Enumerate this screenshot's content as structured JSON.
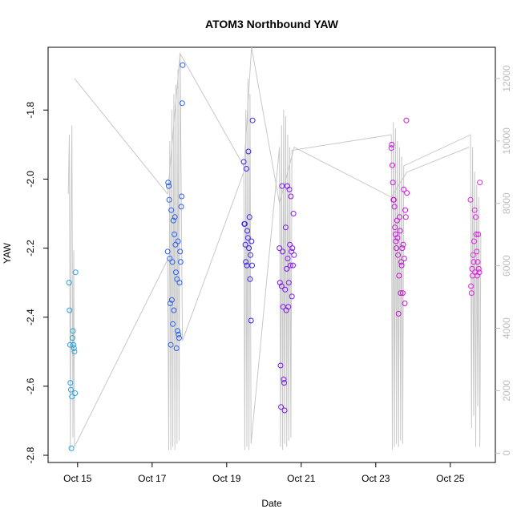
{
  "chart_data": {
    "type": "scatter",
    "title": "ATOM3 Northbound YAW",
    "xlabel": "Date",
    "ylabel": "YAW",
    "xlim": [
      "2014-10-14T05:00",
      "2014-10-26T05:00"
    ],
    "ylim": [
      -2.8,
      -1.66
    ],
    "y2lim": [
      -300,
      13000
    ],
    "x_ticks": [
      "Oct 15",
      "Oct 17",
      "Oct 19",
      "Oct 21",
      "Oct 23",
      "Oct 25"
    ],
    "x_tick_dates": [
      "2014-10-15",
      "2014-10-17",
      "2014-10-19",
      "2014-10-21",
      "2014-10-23",
      "2014-10-25"
    ],
    "y_ticks": [
      -2.8,
      -2.6,
      -2.4,
      -2.2,
      -2.0,
      -1.8
    ],
    "y_tick_labels": [
      "-2.8",
      "-2.6",
      "-2.4",
      "-2.2",
      "-2.0",
      "-1.8"
    ],
    "y2_ticks": [
      0,
      2000,
      4000,
      6000,
      8000,
      10000,
      12000
    ],
    "y2_tick_labels": [
      "0",
      "2000",
      "4000",
      "6000",
      "8000",
      "10000",
      "12000"
    ],
    "colors": {
      "series": [
        "#29a3e0",
        "#2a5ff0",
        "#3d22f0",
        "#7a18f0",
        "#c815d9",
        "#e024e0"
      ],
      "secondary_line": "#c8c8c8",
      "axis": "#000000",
      "right_axis": "#bdbdbd"
    },
    "grid": false,
    "series": [
      {
        "color": "#29a3e0",
        "points": [
          [
            "2014-10-14T18:30",
            -2.3
          ],
          [
            "2014-10-14T18:50",
            -2.38
          ],
          [
            "2014-10-14T19:10",
            -2.48
          ],
          [
            "2014-10-14T19:20",
            -2.59
          ],
          [
            "2014-10-14T19:40",
            -2.61
          ],
          [
            "2014-10-14T20:00",
            -2.78
          ],
          [
            "2014-10-14T20:20",
            -2.63
          ],
          [
            "2014-10-14T20:40",
            -2.46
          ],
          [
            "2014-10-14T21:00",
            -2.44
          ],
          [
            "2014-10-14T21:20",
            -2.48
          ],
          [
            "2014-10-14T21:40",
            -2.49
          ],
          [
            "2014-10-14T22:00",
            -2.5
          ],
          [
            "2014-10-14T22:20",
            -2.62
          ],
          [
            "2014-10-14T22:40",
            -2.27
          ]
        ]
      },
      {
        "color": "#2a5ff0",
        "points": [
          [
            "2014-10-17T10:00",
            -2.21
          ],
          [
            "2014-10-17T10:20",
            -2.01
          ],
          [
            "2014-10-17T10:40",
            -2.02
          ],
          [
            "2014-10-17T11:00",
            -2.06
          ],
          [
            "2014-10-17T11:20",
            -2.23
          ],
          [
            "2014-10-17T11:40",
            -2.36
          ],
          [
            "2014-10-17T12:00",
            -2.48
          ],
          [
            "2014-10-17T12:20",
            -2.09
          ],
          [
            "2014-10-17T12:40",
            -2.35
          ],
          [
            "2014-10-17T13:00",
            -2.24
          ],
          [
            "2014-10-17T13:20",
            -2.42
          ],
          [
            "2014-10-17T13:40",
            -2.12
          ],
          [
            "2014-10-17T14:00",
            -2.38
          ],
          [
            "2014-10-17T14:20",
            -2.16
          ],
          [
            "2014-10-17T14:40",
            -2.11
          ],
          [
            "2014-10-17T15:00",
            -2.19
          ],
          [
            "2014-10-17T15:20",
            -2.27
          ],
          [
            "2014-10-17T15:40",
            -2.49
          ],
          [
            "2014-10-17T16:00",
            -2.29
          ],
          [
            "2014-10-17T16:20",
            -2.44
          ],
          [
            "2014-10-17T16:40",
            -2.18
          ],
          [
            "2014-10-17T17:00",
            -2.45
          ],
          [
            "2014-10-17T17:20",
            -2.46
          ],
          [
            "2014-10-17T17:40",
            -2.3
          ],
          [
            "2014-10-17T18:00",
            -2.21
          ],
          [
            "2014-10-17T18:20",
            -2.24
          ],
          [
            "2014-10-17T18:40",
            -2.08
          ],
          [
            "2014-10-17T19:00",
            -2.05
          ],
          [
            "2014-10-17T19:20",
            -1.78
          ],
          [
            "2014-10-17T19:40",
            -1.67
          ]
        ]
      },
      {
        "color": "#3d22f0",
        "points": [
          [
            "2014-10-19T11:00",
            -1.95
          ],
          [
            "2014-10-19T11:20",
            -2.13
          ],
          [
            "2014-10-19T11:40",
            -2.13
          ],
          [
            "2014-10-19T12:00",
            -2.19
          ],
          [
            "2014-10-19T12:20",
            -2.24
          ],
          [
            "2014-10-19T12:40",
            -1.97
          ],
          [
            "2014-10-19T13:00",
            -2.25
          ],
          [
            "2014-10-19T13:20",
            -2.15
          ],
          [
            "2014-10-19T13:40",
            -2.17
          ],
          [
            "2014-10-19T14:00",
            -1.92
          ],
          [
            "2014-10-19T14:20",
            -2.2
          ],
          [
            "2014-10-19T14:40",
            -2.11
          ],
          [
            "2014-10-19T15:00",
            -2.29
          ],
          [
            "2014-10-19T15:20",
            -2.22
          ],
          [
            "2014-10-19T15:40",
            -2.41
          ],
          [
            "2014-10-19T16:00",
            -2.18
          ],
          [
            "2014-10-19T16:20",
            -2.25
          ],
          [
            "2014-10-19T16:40",
            -1.83
          ]
        ]
      },
      {
        "color": "#7a18f0",
        "points": [
          [
            "2014-10-20T10:00",
            -2.2
          ],
          [
            "2014-10-20T10:20",
            -2.3
          ],
          [
            "2014-10-20T10:40",
            -2.54
          ],
          [
            "2014-10-20T11:00",
            -2.66
          ],
          [
            "2014-10-20T11:20",
            -2.31
          ],
          [
            "2014-10-20T11:40",
            -2.02
          ],
          [
            "2014-10-20T12:00",
            -2.21
          ],
          [
            "2014-10-20T12:20",
            -2.37
          ],
          [
            "2014-10-20T12:40",
            -2.58
          ],
          [
            "2014-10-20T13:00",
            -2.59
          ],
          [
            "2014-10-20T13:20",
            -2.67
          ],
          [
            "2014-10-20T13:40",
            -2.32
          ],
          [
            "2014-10-20T14:00",
            -2.14
          ],
          [
            "2014-10-20T14:20",
            -2.38
          ],
          [
            "2014-10-20T14:40",
            -2.26
          ],
          [
            "2014-10-20T15:00",
            -2.02
          ],
          [
            "2014-10-20T15:20",
            -2.23
          ]
        ]
      },
      {
        "color": "#8a1aee",
        "points": [
          [
            "2014-10-20T15:40",
            -2.37
          ],
          [
            "2014-10-20T16:00",
            -2.3
          ],
          [
            "2014-10-20T16:20",
            -2.03
          ],
          [
            "2014-10-20T16:40",
            -2.19
          ],
          [
            "2014-10-20T17:00",
            -2.25
          ],
          [
            "2014-10-20T17:20",
            -2.05
          ],
          [
            "2014-10-20T17:40",
            -2.21
          ],
          [
            "2014-10-20T18:00",
            -2.34
          ],
          [
            "2014-10-20T18:20",
            -2.2
          ],
          [
            "2014-10-20T18:40",
            -2.25
          ],
          [
            "2014-10-20T19:00",
            -2.1
          ],
          [
            "2014-10-20T19:20",
            -2.22
          ]
        ]
      },
      {
        "color": "#c815d9",
        "points": [
          [
            "2014-10-23T10:00",
            -1.91
          ],
          [
            "2014-10-23T10:20",
            -1.9
          ],
          [
            "2014-10-23T10:40",
            -1.96
          ],
          [
            "2014-10-23T11:00",
            -2.01
          ],
          [
            "2014-10-23T11:20",
            -2.06
          ],
          [
            "2014-10-23T11:40",
            -2.06
          ],
          [
            "2014-10-23T12:00",
            -2.08
          ],
          [
            "2014-10-23T12:20",
            -2.14
          ],
          [
            "2014-10-23T12:40",
            -2.16
          ],
          [
            "2014-10-23T13:00",
            -2.18
          ],
          [
            "2014-10-23T13:20",
            -2.2
          ],
          [
            "2014-10-23T13:40",
            -2.12
          ],
          [
            "2014-10-23T14:00",
            -2.17
          ],
          [
            "2014-10-23T14:20",
            -2.22
          ],
          [
            "2014-10-23T14:40",
            -2.39
          ],
          [
            "2014-10-23T15:00",
            -2.28
          ],
          [
            "2014-10-23T15:20",
            -2.11
          ],
          [
            "2014-10-23T15:40",
            -2.15
          ],
          [
            "2014-10-23T16:00",
            -2.33
          ],
          [
            "2014-10-23T16:20",
            -2.24
          ],
          [
            "2014-10-23T16:40",
            -2.25
          ],
          [
            "2014-10-23T17:00",
            -2.2
          ],
          [
            "2014-10-23T17:20",
            -2.33
          ],
          [
            "2014-10-23T17:40",
            -2.19
          ],
          [
            "2014-10-23T18:00",
            -2.03
          ],
          [
            "2014-10-23T18:20",
            -2.23
          ],
          [
            "2014-10-23T18:40",
            -2.36
          ],
          [
            "2014-10-23T19:00",
            -2.09
          ],
          [
            "2014-10-23T19:20",
            -2.11
          ],
          [
            "2014-10-23T19:40",
            -1.83
          ],
          [
            "2014-10-23T20:00",
            -2.04
          ]
        ]
      },
      {
        "color": "#e024e0",
        "points": [
          [
            "2014-10-25T13:00",
            -2.06
          ],
          [
            "2014-10-25T13:20",
            -2.31
          ],
          [
            "2014-10-25T13:40",
            -2.33
          ],
          [
            "2014-10-25T14:00",
            -2.26
          ],
          [
            "2014-10-25T14:20",
            -2.28
          ],
          [
            "2014-10-25T14:40",
            -2.22
          ],
          [
            "2014-10-25T15:00",
            -2.24
          ],
          [
            "2014-10-25T15:20",
            -2.18
          ],
          [
            "2014-10-25T15:40",
            -2.09
          ],
          [
            "2014-10-25T16:00",
            -2.27
          ],
          [
            "2014-10-25T16:20",
            -2.11
          ],
          [
            "2014-10-25T16:40",
            -2.16
          ],
          [
            "2014-10-25T17:00",
            -2.21
          ],
          [
            "2014-10-25T17:20",
            -2.28
          ],
          [
            "2014-10-25T17:40",
            -2.24
          ],
          [
            "2014-10-25T18:00",
            -2.16
          ],
          [
            "2014-10-25T18:20",
            -2.26
          ],
          [
            "2014-10-25T18:40",
            -2.27
          ],
          [
            "2014-10-25T19:00",
            -2.01
          ]
        ]
      }
    ],
    "secondary_series": {
      "axis": "right",
      "color": "#c8c8c8",
      "spikes": [
        [
          "2014-10-14T18:00",
          8300
        ],
        [
          "2014-10-14T18:40",
          10200
        ],
        [
          "2014-10-14T19:20",
          100
        ],
        [
          "2014-10-14T19:50",
          7500
        ],
        [
          "2014-10-14T20:20",
          10500
        ],
        [
          "2014-10-14T21:00",
          500
        ],
        [
          "2014-10-14T21:30",
          6500
        ],
        [
          "2014-10-14T22:00",
          200
        ],
        [
          "2014-10-17T10:00",
          6200
        ],
        [
          "2014-10-17T10:40",
          100
        ],
        [
          "2014-10-17T11:20",
          10000
        ],
        [
          "2014-10-17T12:00",
          100
        ],
        [
          "2014-10-17T12:40",
          11000
        ],
        [
          "2014-10-17T13:20",
          200
        ],
        [
          "2014-10-17T14:00",
          11500
        ],
        [
          "2014-10-17T14:40",
          100
        ],
        [
          "2014-10-17T15:20",
          11800
        ],
        [
          "2014-10-17T16:00",
          300
        ],
        [
          "2014-10-17T16:40",
          12300
        ],
        [
          "2014-10-17T17:20",
          400
        ],
        [
          "2014-10-17T18:00",
          12800
        ],
        [
          "2014-10-19T11:00",
          9200
        ],
        [
          "2014-10-19T11:40",
          100
        ],
        [
          "2014-10-19T12:20",
          11000
        ],
        [
          "2014-10-19T13:00",
          200
        ],
        [
          "2014-10-19T13:40",
          12000
        ],
        [
          "2014-10-19T14:20",
          100
        ],
        [
          "2014-10-19T15:00",
          11500
        ],
        [
          "2014-10-19T15:40",
          300
        ],
        [
          "2014-10-20T10:00",
          9800
        ],
        [
          "2014-10-20T10:40",
          200
        ],
        [
          "2014-10-20T11:20",
          10500
        ],
        [
          "2014-10-20T12:00",
          100
        ],
        [
          "2014-10-20T12:40",
          11000
        ],
        [
          "2014-10-20T13:20",
          300
        ],
        [
          "2014-10-20T14:00",
          10800
        ],
        [
          "2014-10-20T14:40",
          200
        ],
        [
          "2014-10-20T15:20",
          10200
        ],
        [
          "2014-10-20T16:00",
          400
        ],
        [
          "2014-10-20T16:40",
          9800
        ],
        [
          "2014-10-20T17:20",
          500
        ],
        [
          "2014-10-20T18:00",
          9700
        ],
        [
          "2014-10-23T10:00",
          10200
        ],
        [
          "2014-10-23T10:40",
          100
        ],
        [
          "2014-10-23T11:20",
          10600
        ],
        [
          "2014-10-23T12:00",
          200
        ],
        [
          "2014-10-23T12:40",
          10400
        ],
        [
          "2014-10-23T13:20",
          300
        ],
        [
          "2014-10-23T14:00",
          10000
        ],
        [
          "2014-10-23T14:40",
          200
        ],
        [
          "2014-10-23T15:20",
          9800
        ],
        [
          "2014-10-23T16:00",
          400
        ],
        [
          "2014-10-23T16:40",
          9500
        ],
        [
          "2014-10-23T17:20",
          300
        ],
        [
          "2014-10-23T18:00",
          9200
        ],
        [
          "2014-10-25T13:00",
          10200
        ],
        [
          "2014-10-25T13:40",
          800
        ],
        [
          "2014-10-25T14:20",
          9800
        ],
        [
          "2014-10-25T15:00",
          1200
        ],
        [
          "2014-10-25T15:40",
          9000
        ],
        [
          "2014-10-25T16:20",
          200
        ],
        [
          "2014-10-25T17:00",
          8600
        ],
        [
          "2014-10-25T17:40",
          1500
        ],
        [
          "2014-10-25T18:20",
          8200
        ],
        [
          "2014-10-25T19:00",
          200
        ],
        [
          "2014-10-25T19:40",
          7000
        ]
      ],
      "connectors": [
        [
          "2014-10-14T22:00",
          12000
        ],
        [
          "2014-10-17T10:00",
          8300
        ],
        [
          "2014-10-17T18:00",
          12800
        ],
        [
          "2014-10-17T19:30",
          3600
        ],
        [
          "2014-10-19T11:00",
          9000
        ],
        [
          "2014-10-19T16:00",
          13000
        ],
        [
          "2014-10-20T10:00",
          8000
        ],
        [
          "2014-10-20T19:30",
          9800
        ],
        [
          "2014-10-23T10:00",
          8200
        ],
        [
          "2014-10-23T20:00",
          9000
        ],
        [
          "2014-10-25T12:00",
          9800
        ]
      ]
    }
  }
}
